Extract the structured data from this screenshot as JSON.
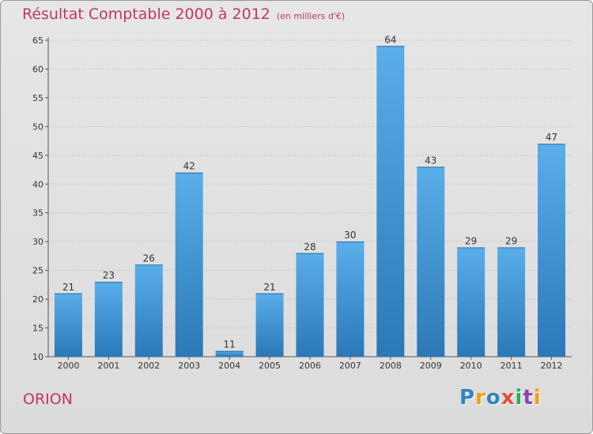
{
  "header": {
    "title": "Résultat Comptable 2000 à 2012",
    "subtitle": "(en milliers d'€)"
  },
  "footer": {
    "commune": "ORION",
    "brand": "Proxiti"
  },
  "colors": {
    "title": "#c0395d",
    "bar_light": "#5aaeea",
    "bar_dark": "#2a78b8",
    "axis": "#555555",
    "grid": "#b8b8b8"
  },
  "chart_data": {
    "type": "bar",
    "title": "Résultat Comptable 2000 à 2012",
    "subtitle": "(en milliers d'€)",
    "xlabel": "",
    "ylabel": "",
    "categories": [
      "2000",
      "2001",
      "2002",
      "2003",
      "2004",
      "2005",
      "2006",
      "2007",
      "2008",
      "2009",
      "2010",
      "2011",
      "2012"
    ],
    "values": [
      21,
      23,
      26,
      42,
      11,
      21,
      28,
      30,
      64,
      43,
      29,
      29,
      47
    ],
    "ylim": [
      10,
      65
    ],
    "yticks": [
      10,
      15,
      20,
      25,
      30,
      35,
      40,
      45,
      50,
      55,
      60,
      65
    ],
    "grid": true,
    "legend": "none"
  }
}
